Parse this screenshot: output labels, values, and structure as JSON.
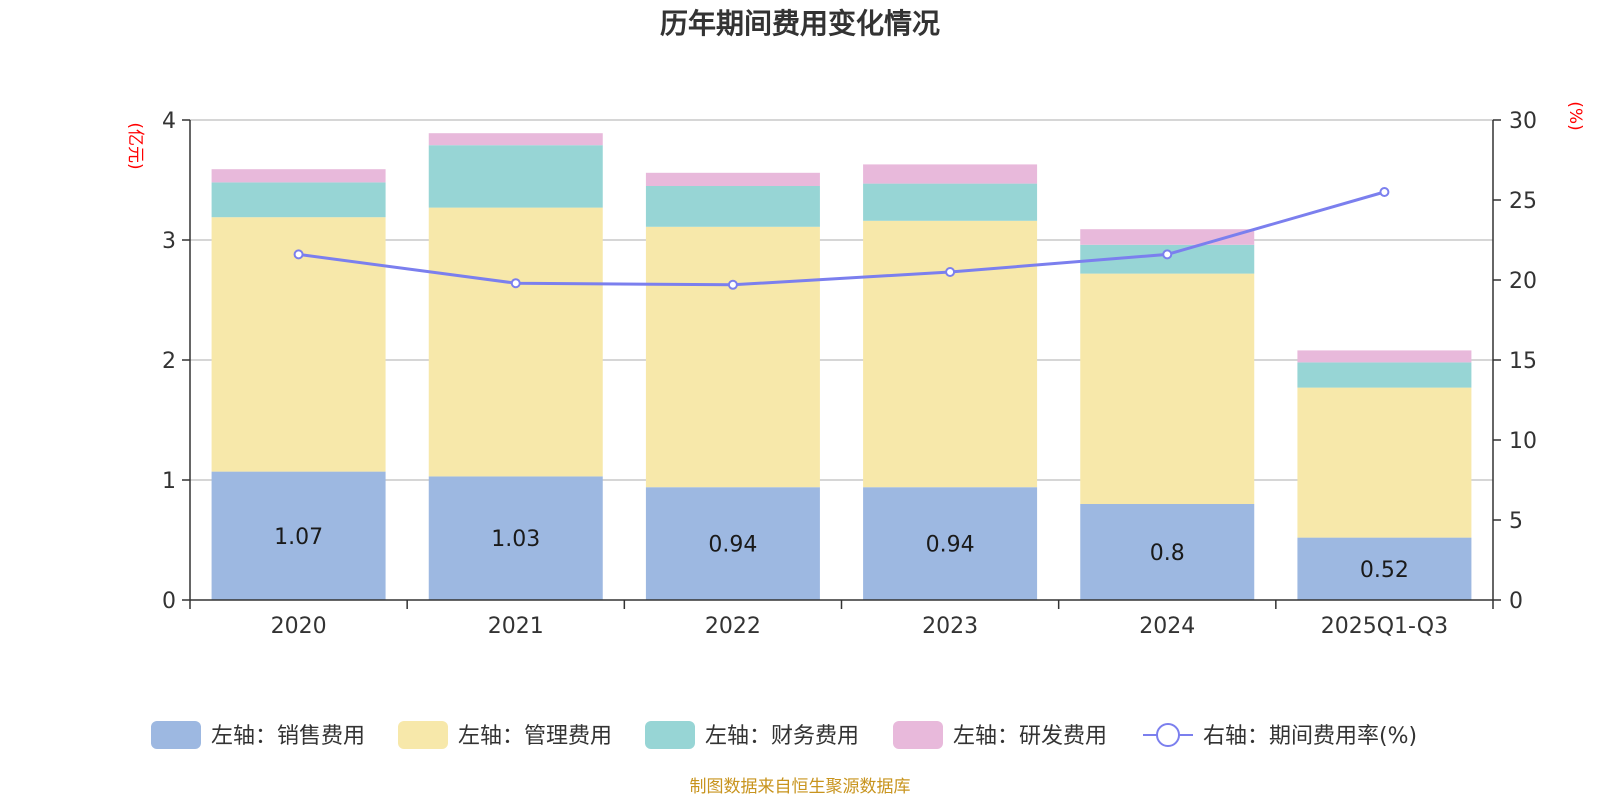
{
  "chart_data": {
    "type": "bar",
    "stacked": true,
    "title": "历年期间费用变化情况",
    "categories": [
      "2020",
      "2021",
      "2022",
      "2023",
      "2024",
      "2025Q1-Q3"
    ],
    "left_axis": {
      "unit": "(亿元)",
      "ylim": [
        0,
        4
      ],
      "ticks": [
        "0",
        "1",
        "2",
        "3",
        "4"
      ]
    },
    "right_axis": {
      "unit": "(%)",
      "ylim": [
        0,
        30
      ],
      "ticks": [
        "0",
        "5",
        "10",
        "15",
        "20",
        "25",
        "30"
      ]
    },
    "series": [
      {
        "name": "左轴：销售费用",
        "type": "bar",
        "axis": "left",
        "color": "#9db8e1",
        "values": [
          1.07,
          1.03,
          0.94,
          0.94,
          0.8,
          0.52
        ],
        "labels": [
          "1.07",
          "1.03",
          "0.94",
          "0.94",
          "0.8",
          "0.52"
        ]
      },
      {
        "name": "左轴：管理费用",
        "type": "bar",
        "axis": "left",
        "color": "#f7e8aa",
        "values": [
          2.12,
          2.24,
          2.17,
          2.22,
          1.92,
          1.25
        ]
      },
      {
        "name": "左轴：财务费用",
        "type": "bar",
        "axis": "left",
        "color": "#97d5d5",
        "values": [
          0.29,
          0.52,
          0.34,
          0.31,
          0.24,
          0.21
        ]
      },
      {
        "name": "左轴：研发费用",
        "type": "bar",
        "axis": "left",
        "color": "#e8b9db",
        "values": [
          0.11,
          0.1,
          0.11,
          0.16,
          0.13,
          0.1
        ]
      },
      {
        "name": "右轴：期间费用率(%)",
        "type": "line",
        "axis": "right",
        "color": "#7b7fee",
        "values": [
          21.6,
          19.8,
          19.7,
          20.5,
          21.6,
          25.5
        ]
      }
    ],
    "grid": true,
    "legend": "bottom"
  },
  "source": "制图数据来自恒生聚源数据库"
}
